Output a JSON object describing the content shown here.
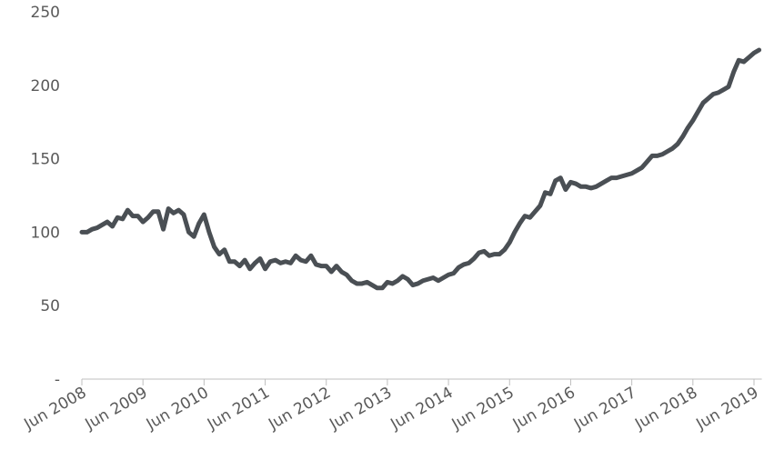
{
  "chart_data": {
    "type": "line",
    "categories": [
      "Jun 2008",
      null,
      null,
      null,
      null,
      null,
      null,
      null,
      null,
      null,
      null,
      null,
      "Jun 2009",
      null,
      null,
      null,
      null,
      null,
      null,
      null,
      null,
      null,
      null,
      null,
      "Jun 2010",
      null,
      null,
      null,
      null,
      null,
      null,
      null,
      null,
      null,
      null,
      null,
      "Jun 2011",
      null,
      null,
      null,
      null,
      null,
      null,
      null,
      null,
      null,
      null,
      null,
      "Jun 2012",
      null,
      null,
      null,
      null,
      null,
      null,
      null,
      null,
      null,
      null,
      null,
      "Jun 2013",
      null,
      null,
      null,
      null,
      null,
      null,
      null,
      null,
      null,
      null,
      null,
      "Jun 2014",
      null,
      null,
      null,
      null,
      null,
      null,
      null,
      null,
      null,
      null,
      null,
      "Jun 2015",
      null,
      null,
      null,
      null,
      null,
      null,
      null,
      null,
      null,
      null,
      null,
      "Jun 2016",
      null,
      null,
      null,
      null,
      null,
      null,
      null,
      null,
      null,
      null,
      null,
      "Jun 2017",
      null,
      null,
      null,
      null,
      null,
      null,
      null,
      null,
      null,
      null,
      null,
      "Jun 2018",
      null,
      null,
      null,
      null,
      null,
      null,
      null,
      null,
      null,
      null,
      null,
      "Jun 2019",
      null
    ],
    "values": [
      100,
      100,
      102,
      103,
      105,
      107,
      104,
      110,
      109,
      115,
      111,
      111,
      107,
      110,
      114,
      114,
      102,
      116,
      113,
      115,
      112,
      100,
      97,
      106,
      112,
      100,
      90,
      85,
      88,
      80,
      80,
      77,
      81,
      75,
      79,
      82,
      75,
      80,
      81,
      79,
      80,
      79,
      84,
      81,
      80,
      84,
      78,
      77,
      77,
      73,
      77,
      73,
      71,
      67,
      65,
      65,
      66,
      64,
      62,
      62,
      66,
      65,
      67,
      70,
      68,
      64,
      65,
      67,
      68,
      69,
      67,
      69,
      71,
      72,
      76,
      78,
      79,
      82,
      86,
      87,
      84,
      85,
      85,
      88,
      93,
      100,
      106,
      111,
      110,
      114,
      118,
      127,
      126,
      135,
      137,
      129,
      134,
      133,
      131,
      131,
      130,
      131,
      133,
      135,
      137,
      137,
      138,
      139,
      140,
      142,
      144,
      148,
      152,
      152,
      153,
      155,
      157,
      160,
      165,
      171,
      176,
      182,
      188,
      191,
      194,
      195,
      197,
      199,
      209,
      217,
      216,
      219,
      222,
      224
    ],
    "color": "#4a4f54",
    "ylim": [
      0,
      250
    ],
    "yticks": [
      {
        "value": 0,
        "label": "-"
      },
      50,
      100,
      150,
      200,
      250
    ],
    "grid": false
  }
}
